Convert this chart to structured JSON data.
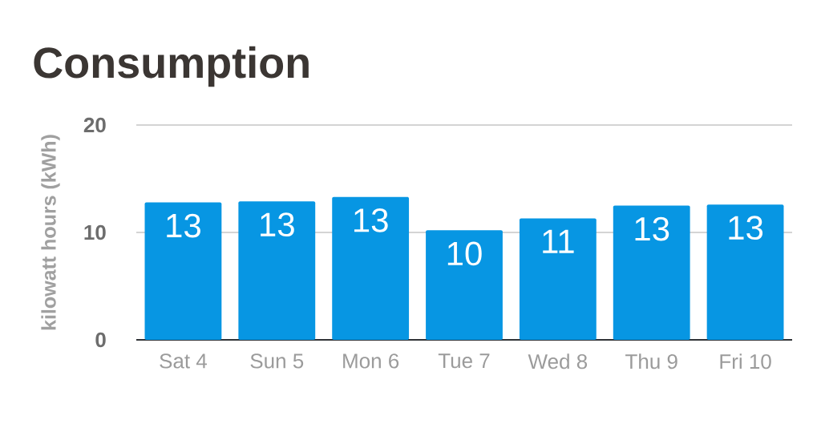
{
  "chart_data": {
    "type": "bar",
    "title": "Consumption",
    "ylabel": "kilowatt hours (kWh)",
    "categories": [
      "Sat 4",
      "Sun 5",
      "Mon 6",
      "Tue 7",
      "Wed 8",
      "Thu 9",
      "Fri 10"
    ],
    "values": [
      12.8,
      12.9,
      13.3,
      10.2,
      11.3,
      12.5,
      12.6
    ],
    "value_labels": [
      "13",
      "13",
      "13",
      "10",
      "11",
      "13",
      "13"
    ],
    "color": "#0796e3",
    "ylim": [
      0,
      20
    ],
    "yticks": [
      0,
      10,
      20
    ],
    "grid": "y"
  }
}
